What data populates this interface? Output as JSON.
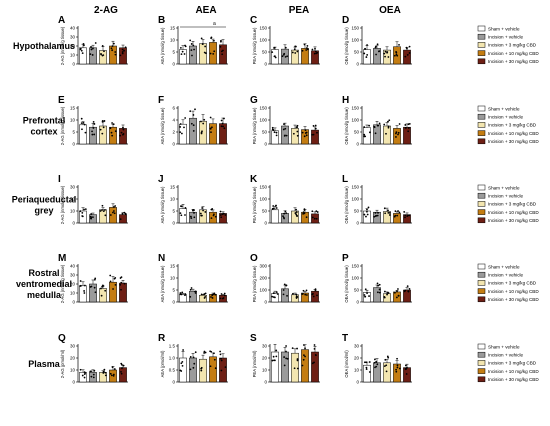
{
  "columns": [
    "2-AG",
    "AEA",
    "PEA",
    "OEA"
  ],
  "rows": [
    {
      "label": [
        "Hypothalamus"
      ]
    },
    {
      "label": [
        "Prefrontal",
        "cortex"
      ]
    },
    {
      "label": [
        "Periaqueductal",
        "grey"
      ]
    },
    {
      "label": [
        "Rostral",
        "ventromedial",
        "medulla"
      ]
    },
    {
      "label": [
        "Plasma"
      ]
    }
  ],
  "legend": [
    "Sham + vehicle",
    "Incision + vehicle",
    "Incision + 3 mg/kg CBD",
    "Incision + 10 mg/kg CBD",
    "Incision + 30 mg/kg CBD"
  ],
  "colors": [
    "#ffffff",
    "#9b9b9b",
    "#f3e6b0",
    "#c47d12",
    "#6e1f14"
  ],
  "chart_data": [
    {
      "type": "bar",
      "panel": "A",
      "ylabel": "2-AG (nmol/g tissue)",
      "ticks": [
        "0",
        "10",
        "20",
        "30",
        "40"
      ],
      "ylim": [
        0,
        40
      ],
      "categories": [
        "Sham + vehicle",
        "Incision + vehicle",
        "Incision + 3 mg/kg CBD",
        "Incision + 10 mg/kg CBD",
        "Incision + 30 mg/kg CBD"
      ],
      "values": [
        18,
        18,
        15,
        20,
        18
      ]
    },
    {
      "type": "bar",
      "panel": "B",
      "ylabel": "AEA (nmol/g tissue)",
      "ticks": [
        "0",
        "5",
        "10",
        "15"
      ],
      "ylim": [
        0,
        15
      ],
      "annotation": "a",
      "categories": [
        "Sham + vehicle",
        "Incision + vehicle",
        "Incision + 3 mg/kg CBD",
        "Incision + 10 mg/kg CBD",
        "Incision + 30 mg/kg CBD"
      ],
      "values": [
        6,
        7.5,
        8.5,
        9,
        8
      ]
    },
    {
      "type": "bar",
      "panel": "C",
      "ylabel": "PEA (nmol/g tissue)",
      "ticks": [
        "0",
        "50",
        "100",
        "150"
      ],
      "ylim": [
        0,
        150
      ],
      "categories": [
        "Sham + vehicle",
        "Incision + vehicle",
        "Incision + 3 mg/kg CBD",
        "Incision + 10 mg/kg CBD",
        "Incision + 30 mg/kg CBD"
      ],
      "values": [
        60,
        62,
        58,
        65,
        55
      ]
    },
    {
      "type": "bar",
      "panel": "D",
      "ylabel": "OEA (nmol/g tissue)",
      "ticks": [
        "0",
        "50",
        "100",
        "150"
      ],
      "ylim": [
        0,
        150
      ],
      "categories": [
        "Sham + vehicle",
        "Incision + vehicle",
        "Incision + 3 mg/kg CBD",
        "Incision + 10 mg/kg CBD",
        "Incision + 30 mg/kg CBD"
      ],
      "values": [
        60,
        65,
        58,
        72,
        58
      ]
    },
    {
      "type": "bar",
      "panel": "E",
      "ylabel": "2-AG (nmol/g tissue)",
      "ticks": [
        "0",
        "5",
        "10",
        "15"
      ],
      "ylim": [
        0,
        15
      ],
      "categories": [
        "Sham + vehicle",
        "Incision + vehicle",
        "Incision + 3 mg/kg CBD",
        "Incision + 10 mg/kg CBD",
        "Incision + 30 mg/kg CBD"
      ],
      "values": [
        8,
        7,
        7.5,
        7,
        6.5
      ]
    },
    {
      "type": "bar",
      "panel": "F",
      "ylabel": "AEA (nmol/g tissue)",
      "ticks": [
        "0",
        "2",
        "4",
        "6"
      ],
      "ylim": [
        0,
        6
      ],
      "categories": [
        "Sham + vehicle",
        "Incision + vehicle",
        "Incision + 3 mg/kg CBD",
        "Incision + 10 mg/kg CBD",
        "Incision + 30 mg/kg CBD"
      ],
      "values": [
        3.3,
        4.3,
        3.8,
        3.4,
        3.4
      ]
    },
    {
      "type": "bar",
      "panel": "G",
      "ylabel": "PEA (nmol/g tissue)",
      "ticks": [
        "0",
        "50",
        "100",
        "150"
      ],
      "ylim": [
        0,
        150
      ],
      "categories": [
        "Sham + vehicle",
        "Incision + vehicle",
        "Incision + 3 mg/kg CBD",
        "Incision + 10 mg/kg CBD",
        "Incision + 30 mg/kg CBD"
      ],
      "values": [
        55,
        75,
        65,
        60,
        58
      ]
    },
    {
      "type": "bar",
      "panel": "H",
      "ylabel": "OEA (nmol/g tissue)",
      "ticks": [
        "0",
        "50",
        "100",
        "150"
      ],
      "ylim": [
        0,
        150
      ],
      "categories": [
        "Sham + vehicle",
        "Incision + vehicle",
        "Incision + 3 mg/kg CBD",
        "Incision + 10 mg/kg CBD",
        "Incision + 30 mg/kg CBD"
      ],
      "values": [
        68,
        80,
        75,
        65,
        70
      ]
    },
    {
      "type": "bar",
      "panel": "I",
      "ylabel": "2-AG (nmol/g tissue)",
      "ticks": [
        "0",
        "10",
        "20",
        "30"
      ],
      "ylim": [
        0,
        30
      ],
      "categories": [
        "Sham + vehicle",
        "Incision + vehicle",
        "Incision + 3 mg/kg CBD",
        "Incision + 10 mg/kg CBD",
        "Incision + 30 mg/kg CBD"
      ],
      "values": [
        10,
        7,
        11,
        13,
        7
      ]
    },
    {
      "type": "bar",
      "panel": "J",
      "ylabel": "AEA (nmol/g tissue)",
      "ticks": [
        "0",
        "5",
        "10",
        "15"
      ],
      "ylim": [
        0,
        15
      ],
      "categories": [
        "Sham + vehicle",
        "Incision + vehicle",
        "Incision + 3 mg/kg CBD",
        "Incision + 10 mg/kg CBD",
        "Incision + 30 mg/kg CBD"
      ],
      "values": [
        6,
        4.5,
        5.5,
        4.5,
        4
      ]
    },
    {
      "type": "bar",
      "panel": "K",
      "ylabel": "PEA (nmol/g tissue)",
      "ticks": [
        "0",
        "50",
        "100",
        "150"
      ],
      "ylim": [
        0,
        150
      ],
      "categories": [
        "Sham + vehicle",
        "Incision + vehicle",
        "Incision + 3 mg/kg CBD",
        "Incision + 10 mg/kg CBD",
        "Incision + 30 mg/kg CBD"
      ],
      "values": [
        55,
        40,
        50,
        45,
        38
      ]
    },
    {
      "type": "bar",
      "panel": "L",
      "ylabel": "OEA (nmol/g tissue)",
      "ticks": [
        "0",
        "50",
        "100",
        "150"
      ],
      "ylim": [
        0,
        150
      ],
      "categories": [
        "Sham + vehicle",
        "Incision + vehicle",
        "Incision + 3 mg/kg CBD",
        "Incision + 10 mg/kg CBD",
        "Incision + 30 mg/kg CBD"
      ],
      "values": [
        50,
        45,
        48,
        40,
        35
      ]
    },
    {
      "type": "bar",
      "panel": "M",
      "ylabel": "2-AG (nmol/g tissue)",
      "ticks": [
        "0",
        "10",
        "20",
        "30",
        "40"
      ],
      "ylim": [
        0,
        40
      ],
      "categories": [
        "Sham + vehicle",
        "Incision + vehicle",
        "Incision + 3 mg/kg CBD",
        "Incision + 10 mg/kg CBD",
        "Incision + 30 mg/kg CBD"
      ],
      "values": [
        18,
        20,
        15,
        22,
        21
      ]
    },
    {
      "type": "bar",
      "panel": "N",
      "ylabel": "AEA (nmol/g tissue)",
      "ticks": [
        "0",
        "5",
        "10",
        "15"
      ],
      "ylim": [
        0,
        15
      ],
      "categories": [
        "Sham + vehicle",
        "Incision + vehicle",
        "Incision + 3 mg/kg CBD",
        "Incision + 10 mg/kg CBD",
        "Incision + 30 mg/kg CBD"
      ],
      "values": [
        3,
        4.5,
        2.8,
        3.2,
        2.8
      ]
    },
    {
      "type": "bar",
      "panel": "O",
      "ylabel": "PEA (nmol/g tissue)",
      "ticks": [
        "0",
        "100",
        "200",
        "300"
      ],
      "ylim": [
        0,
        300
      ],
      "categories": [
        "Sham + vehicle",
        "Incision + vehicle",
        "Incision + 3 mg/kg CBD",
        "Incision + 10 mg/kg CBD",
        "Incision + 30 mg/kg CBD"
      ],
      "values": [
        70,
        110,
        60,
        75,
        90
      ]
    },
    {
      "type": "bar",
      "panel": "P",
      "ylabel": "OEA (nmol/g tissue)",
      "ticks": [
        "0",
        "50",
        "100",
        "150"
      ],
      "ylim": [
        0,
        150
      ],
      "categories": [
        "Sham + vehicle",
        "Incision + vehicle",
        "Incision + 3 mg/kg CBD",
        "Incision + 10 mg/kg CBD",
        "Incision + 30 mg/kg CBD"
      ],
      "values": [
        40,
        60,
        35,
        42,
        50
      ]
    },
    {
      "type": "bar",
      "panel": "Q",
      "ylabel": "2-AG (pmol/ml)",
      "ticks": [
        "0",
        "10",
        "20",
        "30"
      ],
      "ylim": [
        0,
        30
      ],
      "categories": [
        "Sham + vehicle",
        "Incision + vehicle",
        "Incision + 3 mg/kg CBD",
        "Incision + 10 mg/kg CBD",
        "Incision + 30 mg/kg CBD"
      ],
      "values": [
        8,
        8,
        8,
        10,
        12
      ]
    },
    {
      "type": "bar",
      "panel": "R",
      "ylabel": "AEA (pmol/ml)",
      "ticks": [
        "0",
        "0.5",
        "1.0",
        "1.5"
      ],
      "ylim": [
        0,
        1.5
      ],
      "categories": [
        "Sham + vehicle",
        "Incision + vehicle",
        "Incision + 3 mg/kg CBD",
        "Incision + 10 mg/kg CBD",
        "Incision + 30 mg/kg CBD"
      ],
      "values": [
        1.0,
        1.0,
        0.95,
        1.05,
        1.0
      ]
    },
    {
      "type": "bar",
      "panel": "S",
      "ylabel": "PEA (nmol/ml)",
      "ticks": [
        "0",
        "10",
        "20",
        "30"
      ],
      "ylim": [
        0,
        30
      ],
      "categories": [
        "Sham + vehicle",
        "Incision + vehicle",
        "Incision + 3 mg/kg CBD",
        "Incision + 10 mg/kg CBD",
        "Incision + 30 mg/kg CBD"
      ],
      "values": [
        25,
        25,
        24,
        27,
        25
      ]
    },
    {
      "type": "bar",
      "panel": "T",
      "ylabel": "OEA (nmol/ml)",
      "ticks": [
        "0",
        "10",
        "20",
        "30"
      ],
      "ylim": [
        0,
        30
      ],
      "categories": [
        "Sham + vehicle",
        "Incision + vehicle",
        "Incision + 3 mg/kg CBD",
        "Incision + 10 mg/kg CBD",
        "Incision + 30 mg/kg CBD"
      ],
      "values": [
        14,
        16,
        16,
        15,
        12
      ]
    }
  ]
}
